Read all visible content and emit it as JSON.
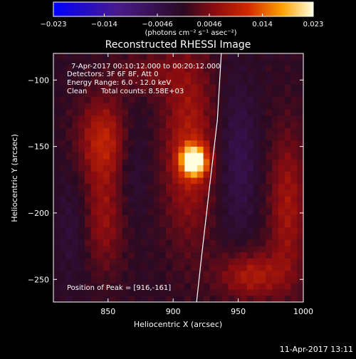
{
  "chart_data": {
    "type": "heatmap",
    "title": "Reconstructed RHESSI Image",
    "xlabel": "Heliocentric X (arcsec)",
    "ylabel": "Heliocentric Y (arcsec)",
    "xlim": [
      808,
      1000
    ],
    "ylim": [
      -267,
      -80
    ],
    "x_ticks": [
      850,
      900,
      950,
      1000
    ],
    "y_ticks": [
      -100,
      -150,
      -200,
      -250
    ],
    "colorbar": {
      "unit_label": "(photons cm⁻² s⁻¹ asec⁻²)",
      "range": [
        -0.023,
        0.023
      ],
      "tick_labels": [
        "−0.023",
        "−0.014",
        "−0.0046",
        "0.0046",
        "0.014",
        "0.023"
      ],
      "tick_values": [
        -0.023,
        -0.014,
        -0.0046,
        0.0046,
        0.014,
        0.023
      ]
    },
    "annotations": {
      "time_range": "7-Apr-2017 00:10:12.000 to 00:20:12.000",
      "detectors": "Detectors: 3F 6F 8F, Att 0",
      "energy_range": "Energy Range: 6.0 - 12.0 keV",
      "clean_label": "Clean",
      "total_counts": "Total counts: 8.58E+03",
      "peak_position": "Position of Peak = [916,-161]"
    },
    "peak": {
      "x": 916,
      "y": -161,
      "value": 0.023
    },
    "sources": [
      {
        "x": 916,
        "y": -161,
        "sx": 7,
        "sy": 8,
        "amp": 0.023
      },
      {
        "x": 912,
        "y": -150,
        "sx": 14,
        "sy": 50,
        "amp": 0.0085
      },
      {
        "x": 847,
        "y": -145,
        "sx": 14,
        "sy": 22,
        "amp": 0.0095
      },
      {
        "x": 846,
        "y": -205,
        "sx": 12,
        "sy": 28,
        "amp": 0.0065
      },
      {
        "x": 988,
        "y": -195,
        "sx": 10,
        "sy": 40,
        "amp": 0.0075
      },
      {
        "x": 960,
        "y": -247,
        "sx": 18,
        "sy": 13,
        "amp": 0.0085
      },
      {
        "x": 880,
        "y": -95,
        "sx": 20,
        "sy": 12,
        "amp": 0.004
      },
      {
        "x": 868,
        "y": -160,
        "sx": 9,
        "sy": 30,
        "amp": -0.0035
      },
      {
        "x": 950,
        "y": -160,
        "sx": 10,
        "sy": 40,
        "amp": -0.0045
      },
      {
        "x": 825,
        "y": -210,
        "sx": 10,
        "sy": 30,
        "amp": -0.003
      }
    ],
    "limb_curve": [
      [
        937,
        -80
      ],
      [
        934,
        -130
      ],
      [
        928,
        -180
      ],
      [
        921,
        -240
      ],
      [
        918,
        -267
      ]
    ],
    "grid": false
  },
  "footer": {
    "timestamp": "11-Apr-2017 13:11"
  }
}
